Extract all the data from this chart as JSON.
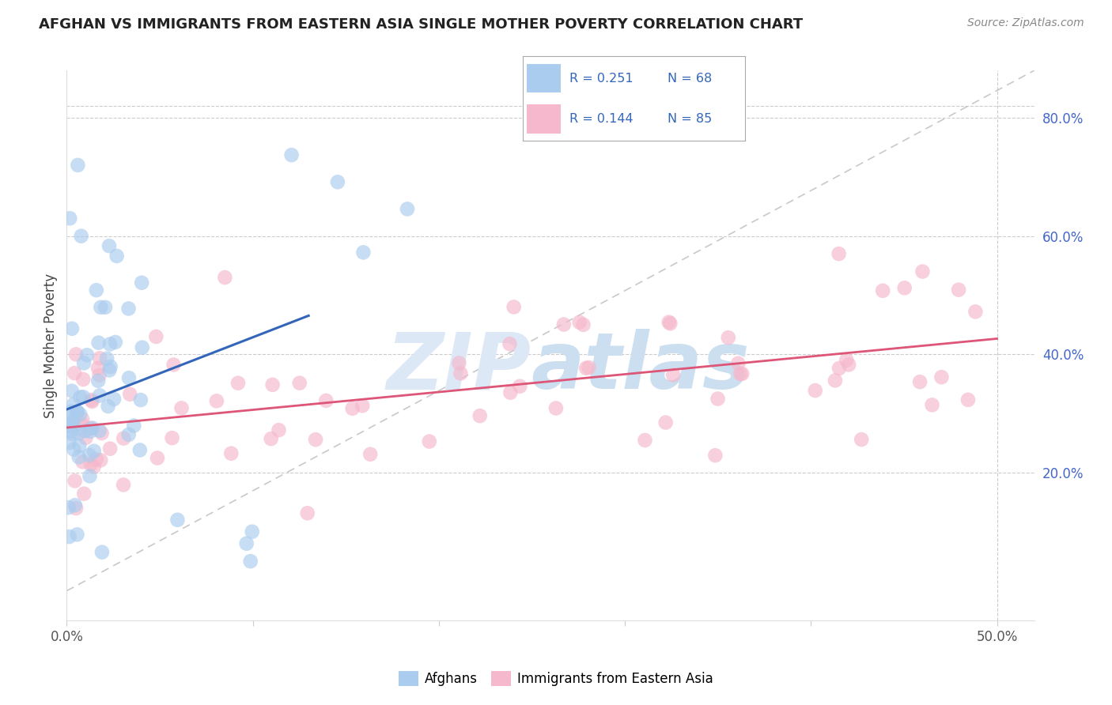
{
  "title": "AFGHAN VS IMMIGRANTS FROM EASTERN ASIA SINGLE MOTHER POVERTY CORRELATION CHART",
  "source": "Source: ZipAtlas.com",
  "ylabel": "Single Mother Poverty",
  "xlim": [
    0.0,
    0.52
  ],
  "ylim": [
    -0.05,
    0.88
  ],
  "plot_ylim": [
    0.0,
    0.85
  ],
  "xtick_vals": [
    0.0,
    0.1,
    0.2,
    0.3,
    0.4,
    0.5
  ],
  "xtick_labels": [
    "0.0%",
    "",
    "",
    "",
    "",
    "50.0%"
  ],
  "ytick_right_vals": [
    0.2,
    0.4,
    0.6,
    0.8
  ],
  "ytick_right_labels": [
    "20.0%",
    "40.0%",
    "60.0%",
    "80.0%"
  ],
  "blue_scatter_color": "#aaccee",
  "pink_scatter_color": "#f5b8cc",
  "blue_line_color": "#3366bb",
  "pink_line_color": "#dd5577",
  "right_axis_color": "#4466cc",
  "legend_text_color": "#3366bb",
  "legend_N_color": "#4466cc",
  "grid_color": "#cccccc",
  "title_color": "#222222",
  "source_color": "#888888",
  "watermark_zip_color": "#dce8f4",
  "watermark_atlas_color": "#c8ddf0",
  "legend_blue_R": "R = 0.251",
  "legend_blue_N": "N = 68",
  "legend_pink_R": "R = 0.144",
  "legend_pink_N": "N = 85",
  "legend_label_blue": "Afghans",
  "legend_label_pink": "Immigrants from Eastern Asia",
  "diag_color": "#bbbbbb",
  "spine_color": "#dddddd"
}
